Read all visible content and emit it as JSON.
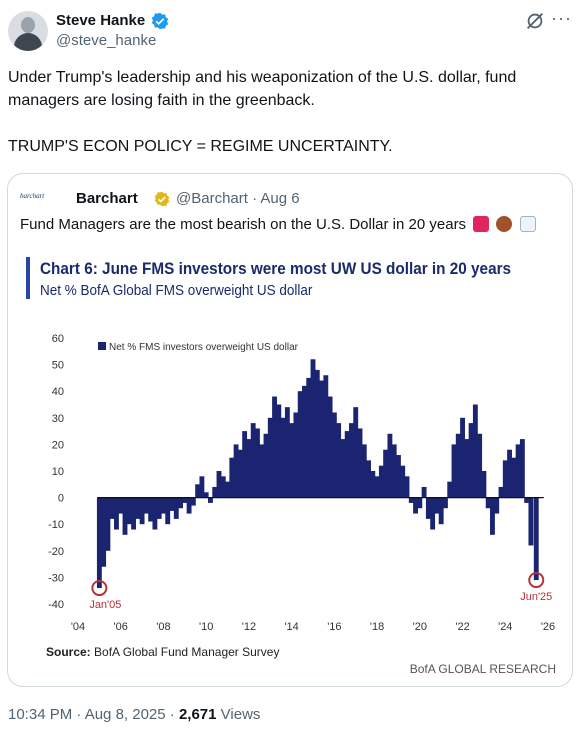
{
  "author": {
    "name": "Steve Hanke",
    "handle": "@steve_hanke",
    "verified_color": "#1d9bf0"
  },
  "tweet": {
    "line1": "Under Trump's leadership and his weaponization of the U.S. dollar, fund managers are losing faith in the greenback.",
    "line2": "TRUMP'S ECON POLICY = REGIME UNCERTAINTY."
  },
  "quote": {
    "logo": "barchart",
    "name": "Barchart",
    "handle_time": "@Barchart · Aug 6",
    "text": "Fund Managers are the most bearish on the U.S. Dollar in 20 years",
    "emojis": [
      "siren-icon",
      "bear-icon",
      "chart-down-icon"
    ]
  },
  "chart_data": {
    "type": "bar",
    "title": "Chart 6: June FMS investors were most UW US dollar in 20 years",
    "subtitle": "Net % BofA Global FMS overweight US dollar",
    "legend": "Net % FMS investors overweight US dollar",
    "legend_position": "top-left",
    "ylim": [
      -40,
      60
    ],
    "yticks": [
      60,
      50,
      40,
      30,
      20,
      10,
      0,
      -10,
      -20,
      -30,
      -40
    ],
    "xticks": [
      "'04",
      "'06",
      "'08",
      "'10",
      "'12",
      "'14",
      "'16",
      "'18",
      "'20",
      "'22",
      "'24",
      "'26"
    ],
    "xlim": [
      2004,
      2026
    ],
    "annotations": [
      {
        "label": "Jan'05",
        "x": 2005.0,
        "y": -34
      },
      {
        "label": "Jun'25",
        "x": 2025.45,
        "y": -31
      }
    ],
    "series": [
      {
        "color": "#1a2470",
        "points": [
          [
            2005.0,
            -34
          ],
          [
            2005.2,
            -26
          ],
          [
            2005.4,
            -20
          ],
          [
            2005.6,
            -8
          ],
          [
            2005.8,
            -12
          ],
          [
            2006.0,
            -6
          ],
          [
            2006.2,
            -14
          ],
          [
            2006.4,
            -10
          ],
          [
            2006.6,
            -12
          ],
          [
            2006.8,
            -8
          ],
          [
            2007.0,
            -10
          ],
          [
            2007.2,
            -6
          ],
          [
            2007.4,
            -9
          ],
          [
            2007.6,
            -12
          ],
          [
            2007.8,
            -8
          ],
          [
            2008.0,
            -6
          ],
          [
            2008.2,
            -10
          ],
          [
            2008.4,
            -5
          ],
          [
            2008.6,
            -8
          ],
          [
            2008.8,
            -4
          ],
          [
            2009.0,
            -2
          ],
          [
            2009.2,
            -6
          ],
          [
            2009.4,
            -3
          ],
          [
            2009.6,
            5
          ],
          [
            2009.8,
            8
          ],
          [
            2010.0,
            2
          ],
          [
            2010.2,
            -2
          ],
          [
            2010.4,
            4
          ],
          [
            2010.6,
            10
          ],
          [
            2010.8,
            8
          ],
          [
            2011.0,
            6
          ],
          [
            2011.2,
            15
          ],
          [
            2011.4,
            20
          ],
          [
            2011.6,
            18
          ],
          [
            2011.8,
            25
          ],
          [
            2012.0,
            22
          ],
          [
            2012.2,
            28
          ],
          [
            2012.4,
            26
          ],
          [
            2012.6,
            20
          ],
          [
            2012.8,
            24
          ],
          [
            2013.0,
            30
          ],
          [
            2013.2,
            38
          ],
          [
            2013.4,
            35
          ],
          [
            2013.6,
            30
          ],
          [
            2013.8,
            34
          ],
          [
            2014.0,
            28
          ],
          [
            2014.2,
            32
          ],
          [
            2014.4,
            40
          ],
          [
            2014.6,
            42
          ],
          [
            2014.8,
            45
          ],
          [
            2015.0,
            52
          ],
          [
            2015.2,
            48
          ],
          [
            2015.4,
            44
          ],
          [
            2015.6,
            46
          ],
          [
            2015.8,
            38
          ],
          [
            2016.0,
            32
          ],
          [
            2016.2,
            28
          ],
          [
            2016.4,
            22
          ],
          [
            2016.6,
            25
          ],
          [
            2016.8,
            28
          ],
          [
            2017.0,
            34
          ],
          [
            2017.2,
            26
          ],
          [
            2017.4,
            20
          ],
          [
            2017.6,
            14
          ],
          [
            2017.8,
            10
          ],
          [
            2018.0,
            8
          ],
          [
            2018.2,
            12
          ],
          [
            2018.4,
            18
          ],
          [
            2018.6,
            24
          ],
          [
            2018.8,
            20
          ],
          [
            2019.0,
            16
          ],
          [
            2019.2,
            12
          ],
          [
            2019.4,
            8
          ],
          [
            2019.6,
            -2
          ],
          [
            2019.8,
            -6
          ],
          [
            2020.0,
            -4
          ],
          [
            2020.2,
            4
          ],
          [
            2020.4,
            -8
          ],
          [
            2020.6,
            -12
          ],
          [
            2020.8,
            -6
          ],
          [
            2021.0,
            -10
          ],
          [
            2021.2,
            -4
          ],
          [
            2021.4,
            6
          ],
          [
            2021.6,
            20
          ],
          [
            2021.8,
            24
          ],
          [
            2022.0,
            30
          ],
          [
            2022.2,
            22
          ],
          [
            2022.4,
            28
          ],
          [
            2022.6,
            35
          ],
          [
            2022.8,
            24
          ],
          [
            2023.0,
            10
          ],
          [
            2023.2,
            -4
          ],
          [
            2023.4,
            -14
          ],
          [
            2023.6,
            -6
          ],
          [
            2023.8,
            4
          ],
          [
            2024.0,
            14
          ],
          [
            2024.2,
            18
          ],
          [
            2024.4,
            15
          ],
          [
            2024.6,
            20
          ],
          [
            2024.8,
            22
          ],
          [
            2025.0,
            -2
          ],
          [
            2025.2,
            -18
          ],
          [
            2025.45,
            -31
          ]
        ]
      }
    ],
    "source_label": "Source:",
    "source_text": "BofA Global Fund Manager Survey",
    "credit": "BofA GLOBAL RESEARCH"
  },
  "footer": {
    "time": "10:34 PM · Aug 8, 2025 · ",
    "views_count": "2,671",
    "views_label": " Views"
  }
}
